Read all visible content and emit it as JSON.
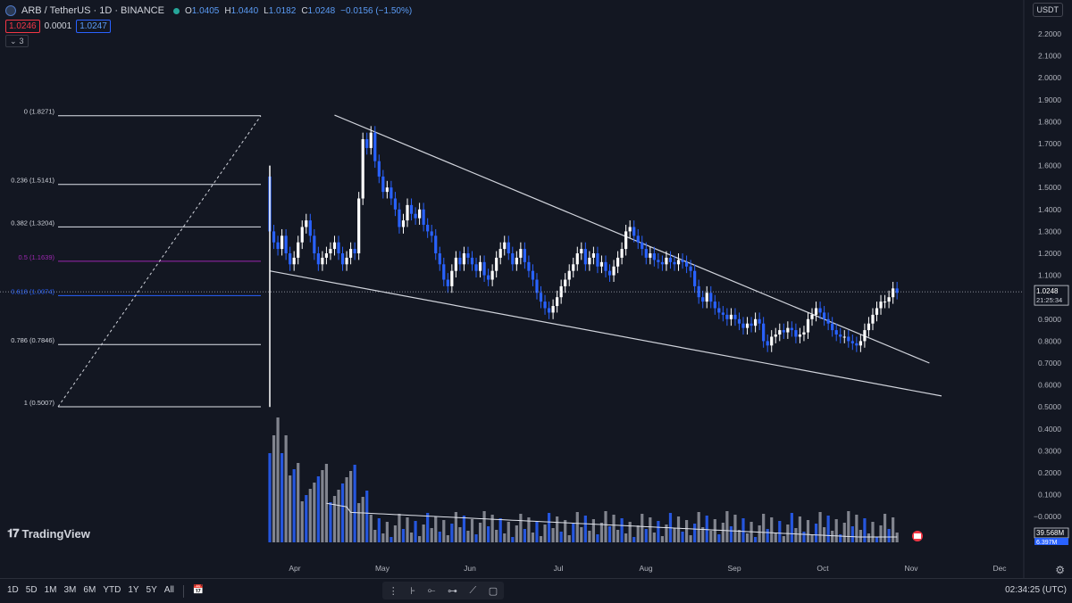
{
  "header": {
    "symbol_title": "ARB / TetherUS · 1D · BINANCE",
    "ohlc": [
      {
        "k": "O",
        "v": "1.0405"
      },
      {
        "k": "H",
        "v": "1.0440"
      },
      {
        "k": "L",
        "v": "1.0182"
      },
      {
        "k": "C",
        "v": "1.0248"
      },
      {
        "k": "",
        "v": "−0.0156 (−1.50%)"
      }
    ],
    "bid": "1.0246",
    "spread": "0.0001",
    "ask": "1.0247",
    "indicators_count": "3",
    "currency": "USDT"
  },
  "chart_data": {
    "type": "candlestick",
    "price_axis": [
      "2.2000",
      "2.1000",
      "2.0000",
      "1.9000",
      "1.8000",
      "1.7000",
      "1.6000",
      "1.5000",
      "1.4000",
      "1.3000",
      "1.2000",
      "1.1000",
      "1.0000",
      "0.9000",
      "0.8000",
      "0.7000",
      "0.6000",
      "0.5000",
      "0.4000",
      "0.3000",
      "0.2000",
      "0.1000",
      "−0.0000"
    ],
    "time_axis": [
      "Apr",
      "May",
      "Jun",
      "Jul",
      "Aug",
      "Sep",
      "Oct",
      "Nov",
      "Dec"
    ],
    "last_price": "1.0248",
    "countdown": "21:25:34",
    "volume_label": "39.568M",
    "volume_sub_label": "6.397M",
    "fib_levels": [
      {
        "label": "0 (1.8271)",
        "value": 1.8271,
        "color": "#e0e3eb"
      },
      {
        "label": "0.236 (1.5141)",
        "value": 1.5141,
        "color": "#e0e3eb"
      },
      {
        "label": "0.382 (1.3204)",
        "value": 1.3204,
        "color": "#e0e3eb"
      },
      {
        "label": "0.5 (1.1639)",
        "value": 1.1639,
        "color": "#9c27b0"
      },
      {
        "label": "0.618 (1.0074)",
        "value": 1.0074,
        "color": "#2962ff"
      },
      {
        "label": "0.786 (0.7846)",
        "value": 0.7846,
        "color": "#e0e3eb"
      },
      {
        "label": "1 (0.5007)",
        "value": 0.5007,
        "color": "#e0e3eb"
      }
    ],
    "closes": [
      1.3,
      1.25,
      1.22,
      1.28,
      1.2,
      1.15,
      1.18,
      1.25,
      1.32,
      1.35,
      1.28,
      1.2,
      1.15,
      1.18,
      1.2,
      1.22,
      1.25,
      1.2,
      1.15,
      1.18,
      1.22,
      1.2,
      1.45,
      1.72,
      1.68,
      1.75,
      1.62,
      1.55,
      1.48,
      1.5,
      1.45,
      1.4,
      1.32,
      1.35,
      1.42,
      1.38,
      1.36,
      1.4,
      1.33,
      1.3,
      1.28,
      1.2,
      1.15,
      1.08,
      1.05,
      1.12,
      1.18,
      1.15,
      1.2,
      1.18,
      1.15,
      1.12,
      1.16,
      1.1,
      1.08,
      1.12,
      1.18,
      1.22,
      1.25,
      1.2,
      1.15,
      1.18,
      1.22,
      1.16,
      1.12,
      1.08,
      1.02,
      0.98,
      0.95,
      0.93,
      0.96,
      1.0,
      1.05,
      1.08,
      1.12,
      1.15,
      1.2,
      1.22,
      1.15,
      1.18,
      1.2,
      1.14,
      1.16,
      1.12,
      1.1,
      1.14,
      1.18,
      1.22,
      1.3,
      1.32,
      1.28,
      1.25,
      1.22,
      1.18,
      1.2,
      1.17,
      1.16,
      1.15,
      1.18,
      1.16,
      1.15,
      1.17,
      1.16,
      1.14,
      1.12,
      1.05,
      1.0,
      0.98,
      1.02,
      0.98,
      0.95,
      0.93,
      0.92,
      0.9,
      0.92,
      0.9,
      0.88,
      0.86,
      0.88,
      0.87,
      0.9,
      0.88,
      0.8,
      0.78,
      0.82,
      0.83,
      0.85,
      0.84,
      0.86,
      0.85,
      0.82,
      0.83,
      0.84,
      0.9,
      0.92,
      0.95,
      0.93,
      0.9,
      0.88,
      0.85,
      0.83,
      0.82,
      0.82,
      0.8,
      0.79,
      0.78,
      0.8,
      0.85,
      0.88,
      0.92,
      0.95,
      0.98,
      0.98,
      1.0,
      1.04,
      1.02
    ]
  },
  "toolbar": {
    "timeframes": [
      "1D",
      "5D",
      "1M",
      "3M",
      "6M",
      "YTD",
      "1Y",
      "5Y",
      "All"
    ],
    "clock": "02:34:25 (UTC)"
  },
  "brand": "TradingView"
}
